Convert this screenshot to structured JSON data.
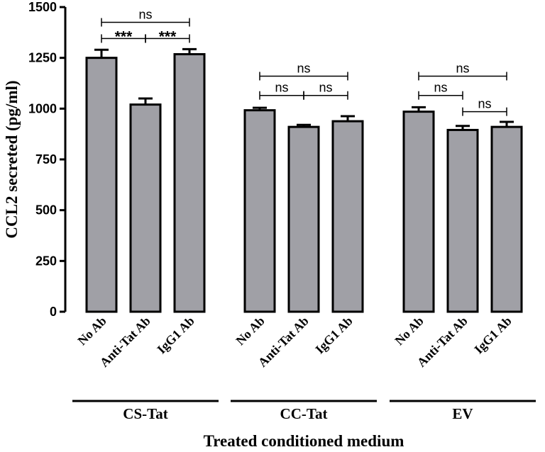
{
  "chart_data": {
    "type": "bar",
    "title": "",
    "ylabel": "CCL2 secreted (pg/ml)",
    "xlabel": "Treated conditioned medium",
    "ylim": [
      0,
      1500
    ],
    "yticks": [
      0,
      250,
      500,
      750,
      1000,
      1250,
      1500
    ],
    "bar_color": "#a0a0a6",
    "groups": [
      {
        "name": "CS-Tat",
        "bars": [
          {
            "category": "No Ab",
            "value": 1250,
            "error": 40
          },
          {
            "category": "Anti-Tat Ab",
            "value": 1020,
            "error": 30
          },
          {
            "category": "IgG1 Ab",
            "value": 1268,
            "error": 25
          }
        ],
        "comparisons": [
          {
            "from": 0,
            "to": 2,
            "label": "ns",
            "y": 1425
          },
          {
            "from": 0,
            "to": 1,
            "label": "***",
            "y": 1345
          },
          {
            "from": 1,
            "to": 2,
            "label": "***",
            "y": 1345
          }
        ]
      },
      {
        "name": "CC-Tat",
        "bars": [
          {
            "category": "No Ab",
            "value": 992,
            "error": 12
          },
          {
            "category": "Anti-Tat Ab",
            "value": 910,
            "error": 10
          },
          {
            "category": "IgG1 Ab",
            "value": 938,
            "error": 25
          }
        ],
        "comparisons": [
          {
            "from": 0,
            "to": 2,
            "label": "ns",
            "y": 1160
          },
          {
            "from": 0,
            "to": 1,
            "label": "ns",
            "y": 1065
          },
          {
            "from": 1,
            "to": 2,
            "label": "ns",
            "y": 1065
          }
        ]
      },
      {
        "name": "EV",
        "bars": [
          {
            "category": "No Ab",
            "value": 985,
            "error": 22
          },
          {
            "category": "Anti-Tat Ab",
            "value": 895,
            "error": 20
          },
          {
            "category": "IgG1 Ab",
            "value": 910,
            "error": 25
          }
        ],
        "comparisons": [
          {
            "from": 0,
            "to": 2,
            "label": "ns",
            "y": 1160
          },
          {
            "from": 0,
            "to": 1,
            "label": "ns",
            "y": 1065
          },
          {
            "from": 1,
            "to": 2,
            "label": "ns",
            "y": 985
          }
        ]
      }
    ]
  }
}
